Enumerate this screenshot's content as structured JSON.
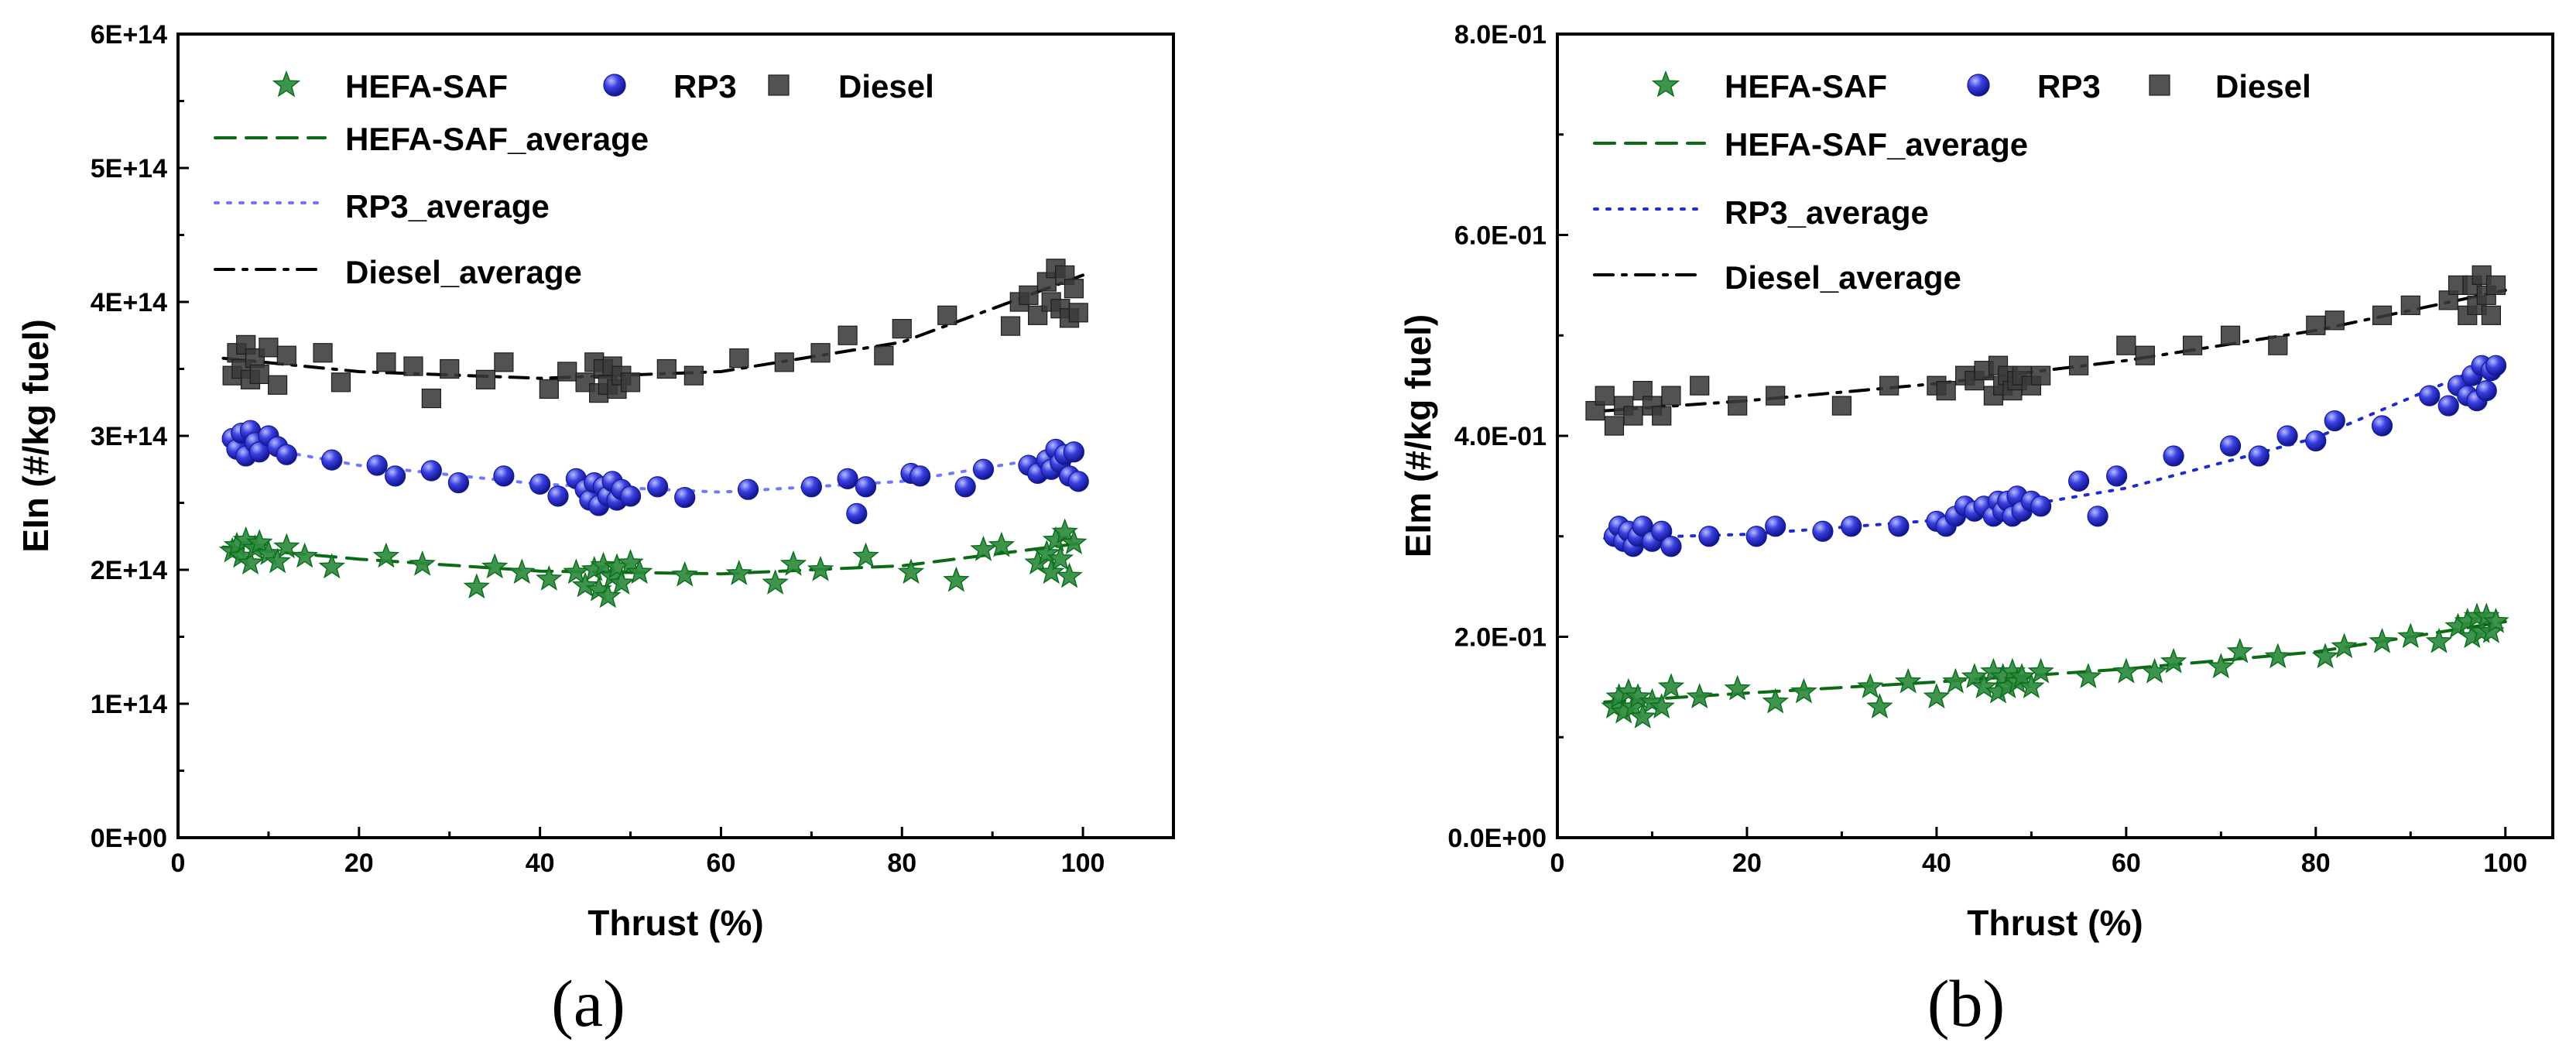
{
  "figure": {
    "colors": {
      "hefa": "#2e8b3e",
      "hefa_dark": "#0d6e1e",
      "rp3": "#2f36d9",
      "rp3_light": "#8a90ff",
      "diesel": "#3a3a3a",
      "diesel_light": "#707070",
      "fit_hefa": "#0b6b14",
      "fit_rp3": "#6f78ff",
      "fit_rp3_b": "#1f2ad0",
      "fit_diesel": "#000000"
    },
    "marker_icons": [
      "star-icon",
      "sphere-icon",
      "square-icon"
    ]
  },
  "chart_data": [
    {
      "type": "scatter",
      "panel_label": "(a)",
      "xlabel": "Thrust (%)",
      "ylabel": "EIn (#/kg fuel)",
      "xlim": [
        0,
        110
      ],
      "ylim": [
        0,
        600000000000000
      ],
      "x_ticks": [
        0,
        20,
        40,
        60,
        80,
        100
      ],
      "x_tick_labels": [
        "0",
        "20",
        "40",
        "60",
        "80",
        "100"
      ],
      "y_ticks": [
        0,
        100000000000000,
        200000000000000,
        300000000000000,
        400000000000000,
        500000000000000,
        600000000000000
      ],
      "y_tick_labels": [
        "0E+00",
        "1E+14",
        "2E+14",
        "3E+14",
        "4E+14",
        "5E+14",
        "6E+14"
      ],
      "legend": {
        "markers": [
          "HEFA-SAF",
          "RP3",
          "Diesel"
        ],
        "lines": [
          "HEFA-SAF_average",
          "RP3_average",
          "Diesel_average"
        ]
      },
      "series": [
        {
          "name": "HEFA-SAF",
          "marker": "star",
          "color_key": "hefa",
          "x": [
            6,
            6.5,
            7,
            7.5,
            8,
            8.5,
            9,
            10,
            11,
            12,
            14,
            17,
            23,
            27,
            33,
            35,
            38,
            41,
            44,
            45,
            46,
            46.5,
            47,
            47.5,
            48,
            48.5,
            49,
            50,
            51,
            56,
            62,
            66,
            68,
            71,
            76,
            81,
            86,
            89,
            91,
            95,
            96,
            96.5,
            97,
            97.5,
            98,
            98.5,
            99
          ],
          "y": [
            214000000000000.0,
            218000000000000.0,
            210000000000000.0,
            222000000000000.0,
            205000000000000.0,
            216000000000000.0,
            220000000000000.0,
            212000000000000.0,
            206000000000000.0,
            217000000000000.0,
            210000000000000.0,
            202000000000000.0,
            210000000000000.0,
            204000000000000.0,
            187000000000000.0,
            202000000000000.0,
            198000000000000.0,
            193000000000000.0,
            198000000000000.0,
            188000000000000.0,
            200000000000000.0,
            185000000000000.0,
            203000000000000.0,
            180000000000000.0,
            195000000000000.0,
            202000000000000.0,
            190000000000000.0,
            205000000000000.0,
            198000000000000.0,
            196000000000000.0,
            197000000000000.0,
            190000000000000.0,
            204000000000000.0,
            200000000000000.0,
            210000000000000.0,
            198000000000000.0,
            192000000000000.0,
            215000000000000.0,
            218000000000000.0,
            205000000000000.0,
            212000000000000.0,
            198000000000000.0,
            222000000000000.0,
            208000000000000.0,
            228000000000000.0,
            195000000000000.0,
            220000000000000.0
          ]
        },
        {
          "name": "RP3",
          "marker": "sphere",
          "color_key": "rp3",
          "x": [
            6,
            6.5,
            7,
            7.5,
            8,
            8.5,
            9,
            10,
            11,
            12,
            17,
            22,
            24,
            28,
            31,
            36,
            40,
            42,
            44,
            45,
            45.5,
            46,
            46.5,
            47,
            47.5,
            48,
            48.5,
            49,
            50,
            53,
            56,
            63,
            70,
            74,
            75,
            76,
            81,
            82,
            87,
            89,
            94,
            95,
            96,
            96.5,
            97,
            97.5,
            98,
            98.5,
            99,
            99.5
          ],
          "y": [
            298000000000000.0,
            290000000000000.0,
            302000000000000.0,
            285000000000000.0,
            304000000000000.0,
            295000000000000.0,
            288000000000000.0,
            300000000000000.0,
            292000000000000.0,
            286000000000000.0,
            282000000000000.0,
            278000000000000.0,
            270000000000000.0,
            274000000000000.0,
            265000000000000.0,
            270000000000000.0,
            264000000000000.0,
            255000000000000.0,
            268000000000000.0,
            260000000000000.0,
            252000000000000.0,
            265000000000000.0,
            248000000000000.0,
            262000000000000.0,
            255000000000000.0,
            266000000000000.0,
            252000000000000.0,
            260000000000000.0,
            255000000000000.0,
            262000000000000.0,
            254000000000000.0,
            260000000000000.0,
            262000000000000.0,
            268000000000000.0,
            242000000000000.0,
            262000000000000.0,
            272000000000000.0,
            270000000000000.0,
            262000000000000.0,
            275000000000000.0,
            278000000000000.0,
            272000000000000.0,
            282000000000000.0,
            275000000000000.0,
            290000000000000.0,
            280000000000000.0,
            286000000000000.0,
            270000000000000.0,
            288000000000000.0,
            266000000000000.0
          ]
        },
        {
          "name": "Diesel",
          "marker": "square",
          "color_key": "diesel",
          "x": [
            6,
            6.5,
            7,
            7.5,
            8,
            8.5,
            9,
            10,
            11,
            12,
            16,
            18,
            23,
            26,
            28,
            30,
            34,
            36,
            41,
            43,
            45,
            46,
            46.5,
            47,
            47.5,
            48,
            48.5,
            49,
            50,
            54,
            57,
            62,
            67,
            71,
            74,
            78,
            80,
            85,
            92,
            93,
            94,
            95,
            96,
            96.5,
            97,
            97.5,
            98,
            98.5,
            99,
            99.5
          ],
          "y": [
            345000000000000.0,
            362000000000000.0,
            350000000000000.0,
            368000000000000.0,
            342000000000000.0,
            358000000000000.0,
            346000000000000.0,
            366000000000000.0,
            338000000000000.0,
            360000000000000.0,
            362000000000000.0,
            340000000000000.0,
            355000000000000.0,
            352000000000000.0,
            328000000000000.0,
            350000000000000.0,
            342000000000000.0,
            355000000000000.0,
            335000000000000.0,
            348000000000000.0,
            340000000000000.0,
            355000000000000.0,
            332000000000000.0,
            350000000000000.0,
            338000000000000.0,
            352000000000000.0,
            335000000000000.0,
            345000000000000.0,
            340000000000000.0,
            350000000000000.0,
            345000000000000.0,
            358000000000000.0,
            355000000000000.0,
            362000000000000.0,
            375000000000000.0,
            360000000000000.0,
            380000000000000.0,
            390000000000000.0,
            382000000000000.0,
            400000000000000.0,
            405000000000000.0,
            390000000000000.0,
            415000000000000.0,
            400000000000000.0,
            425000000000000.0,
            395000000000000.0,
            420000000000000.0,
            388000000000000.0,
            410000000000000.0,
            392000000000000.0
          ]
        }
      ],
      "averages": [
        {
          "name": "HEFA-SAF_average",
          "style": "dashed",
          "color_key": "fit_hefa",
          "x": [
            5,
            20,
            40,
            60,
            80,
            100
          ],
          "y": [
            217000000000000.0,
            208000000000000.0,
            199000000000000.0,
            197000000000000.0,
            203000000000000.0,
            220000000000000.0
          ]
        },
        {
          "name": "RP3_average",
          "style": "dotted",
          "color_key": "fit_rp3",
          "x": [
            5,
            20,
            40,
            60,
            80,
            100
          ],
          "y": [
            296000000000000.0,
            278000000000000.0,
            264000000000000.0,
            258000000000000.0,
            266000000000000.0,
            288000000000000.0
          ]
        },
        {
          "name": "Diesel_average",
          "style": "dashdot",
          "color_key": "fit_diesel",
          "x": [
            5,
            20,
            40,
            60,
            80,
            100
          ],
          "y": [
            358000000000000.0,
            348000000000000.0,
            343000000000000.0,
            348000000000000.0,
            370000000000000.0,
            420000000000000.0
          ]
        }
      ]
    },
    {
      "type": "scatter",
      "panel_label": "(b)",
      "xlabel": "Thrust (%)",
      "ylabel": "EIm (#/kg fuel)",
      "xlim": [
        0,
        105
      ],
      "ylim": [
        0,
        0.8
      ],
      "x_ticks": [
        0,
        20,
        40,
        60,
        80,
        100
      ],
      "x_tick_labels": [
        "0",
        "20",
        "40",
        "60",
        "80",
        "100"
      ],
      "y_ticks": [
        0,
        0.2,
        0.4,
        0.6,
        0.8
      ],
      "y_tick_labels": [
        "0.0E+00",
        "2.0E-01",
        "4.0E-01",
        "6.0E-01",
        "8.0E-01"
      ],
      "legend": {
        "markers": [
          "HEFA-SAF",
          "RP3",
          "Diesel"
        ],
        "lines": [
          "HEFA-SAF_average",
          "RP3_average",
          "Diesel_average"
        ]
      },
      "series": [
        {
          "name": "HEFA-SAF",
          "marker": "star",
          "color_key": "hefa",
          "x": [
            6,
            6.5,
            7,
            7.5,
            8,
            8.5,
            9,
            10,
            11,
            12,
            15,
            19,
            23,
            26,
            33,
            34,
            37,
            40,
            42,
            44,
            45,
            46,
            46.5,
            47,
            47.5,
            48,
            48.5,
            49,
            50,
            51,
            56,
            60,
            63,
            65,
            70,
            72,
            76,
            81,
            83,
            87,
            90,
            93,
            95,
            96,
            96.5,
            97,
            97.5,
            98,
            98.5,
            99
          ],
          "y": [
            0.13,
            0.14,
            0.125,
            0.145,
            0.13,
            0.14,
            0.12,
            0.135,
            0.13,
            0.15,
            0.14,
            0.148,
            0.135,
            0.145,
            0.15,
            0.13,
            0.155,
            0.14,
            0.155,
            0.16,
            0.15,
            0.165,
            0.145,
            0.16,
            0.15,
            0.165,
            0.155,
            0.16,
            0.15,
            0.165,
            0.16,
            0.165,
            0.165,
            0.175,
            0.17,
            0.185,
            0.18,
            0.18,
            0.19,
            0.195,
            0.2,
            0.195,
            0.21,
            0.215,
            0.2,
            0.22,
            0.205,
            0.22,
            0.205,
            0.215
          ]
        },
        {
          "name": "RP3",
          "marker": "sphere",
          "color_key": "rp3",
          "x": [
            6,
            6.5,
            7,
            7.5,
            8,
            8.5,
            9,
            10,
            11,
            12,
            16,
            21,
            23,
            28,
            31,
            36,
            40,
            41,
            42,
            43,
            44,
            45,
            46,
            46.5,
            47,
            47.5,
            48,
            48.5,
            49,
            50,
            51,
            55,
            57,
            59,
            65,
            71,
            74,
            77,
            80,
            82,
            87,
            92,
            94,
            95,
            96,
            96.5,
            97,
            97.5,
            98,
            98.5,
            99
          ],
          "y": [
            0.3,
            0.31,
            0.295,
            0.305,
            0.29,
            0.3,
            0.31,
            0.295,
            0.305,
            0.29,
            0.3,
            0.3,
            0.31,
            0.305,
            0.31,
            0.31,
            0.315,
            0.31,
            0.32,
            0.33,
            0.325,
            0.33,
            0.32,
            0.335,
            0.325,
            0.335,
            0.32,
            0.34,
            0.325,
            0.335,
            0.33,
            0.355,
            0.32,
            0.36,
            0.38,
            0.39,
            0.38,
            0.4,
            0.395,
            0.415,
            0.41,
            0.44,
            0.43,
            0.45,
            0.44,
            0.46,
            0.435,
            0.47,
            0.445,
            0.465,
            0.47
          ]
        },
        {
          "name": "Diesel",
          "marker": "square",
          "color_key": "diesel",
          "x": [
            4,
            5,
            6,
            7,
            8,
            9,
            10,
            11,
            12,
            15,
            19,
            23,
            30,
            35,
            40,
            41,
            43,
            44,
            45,
            46,
            46.5,
            47,
            47.5,
            48,
            48.5,
            49,
            50,
            51,
            55,
            60,
            62,
            67,
            71,
            76,
            80,
            82,
            87,
            90,
            94,
            95,
            96,
            96.5,
            97,
            97.5,
            98,
            98.5,
            99
          ],
          "y": [
            0.425,
            0.44,
            0.41,
            0.43,
            0.42,
            0.445,
            0.43,
            0.42,
            0.44,
            0.45,
            0.43,
            0.44,
            0.43,
            0.45,
            0.45,
            0.445,
            0.46,
            0.455,
            0.465,
            0.44,
            0.47,
            0.45,
            0.46,
            0.445,
            0.455,
            0.46,
            0.45,
            0.46,
            0.47,
            0.49,
            0.48,
            0.49,
            0.5,
            0.49,
            0.51,
            0.515,
            0.52,
            0.53,
            0.535,
            0.55,
            0.52,
            0.55,
            0.53,
            0.56,
            0.54,
            0.52,
            0.55
          ]
        }
      ],
      "averages": [
        {
          "name": "HEFA-SAF_average",
          "style": "dashed",
          "color_key": "fit_hefa",
          "x": [
            5,
            20,
            40,
            60,
            80,
            100
          ],
          "y": [
            0.135,
            0.144,
            0.155,
            0.168,
            0.185,
            0.215
          ]
        },
        {
          "name": "RP3_average",
          "style": "dotted",
          "color_key": "fit_rp3_b",
          "x": [
            5,
            20,
            40,
            60,
            80,
            100
          ],
          "y": [
            0.298,
            0.302,
            0.316,
            0.348,
            0.398,
            0.478
          ]
        },
        {
          "name": "Diesel_average",
          "style": "dashdot",
          "color_key": "fit_diesel",
          "x": [
            5,
            20,
            40,
            60,
            80,
            100
          ],
          "y": [
            0.425,
            0.435,
            0.452,
            0.475,
            0.505,
            0.545
          ]
        }
      ]
    }
  ]
}
